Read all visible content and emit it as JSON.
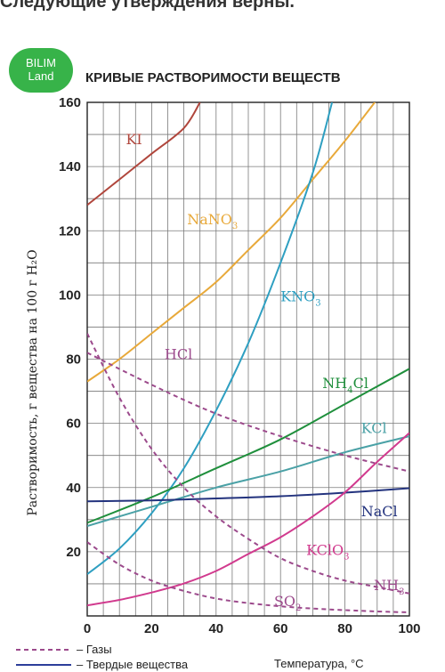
{
  "page": {
    "heading_fragment": "Следующие утверждения верны.",
    "logo_line1": "BILIM",
    "logo_line2": "Land"
  },
  "colors": {
    "grid": "#7a7a7a",
    "axis": "#222222",
    "logo_bg": "#37b349"
  },
  "chart_data": {
    "type": "line",
    "title": "КРИВЫЕ РАСТВОРИМОСТИ ВЕЩЕСТВ",
    "xlabel": "Температура, °С",
    "ylabel": "Растворимость, г вещества на 100 г H₂O",
    "xlim": [
      0,
      100
    ],
    "ylim": [
      0,
      160
    ],
    "x_ticks": [
      0,
      20,
      40,
      60,
      80,
      100
    ],
    "y_ticks": [
      20,
      40,
      60,
      80,
      100,
      120,
      140,
      160
    ],
    "grid": true,
    "legend": [
      {
        "label": "Газы",
        "style": "dashed",
        "color": "#9c4a8c"
      },
      {
        "label": "Твердые вещества",
        "style": "solid",
        "color": "#2c3e9a"
      }
    ],
    "series": [
      {
        "name": "KI",
        "color": "#b0463c",
        "style": "solid",
        "label_at": [
          12,
          147
        ],
        "points": [
          [
            0,
            128
          ],
          [
            10,
            136
          ],
          [
            20,
            144
          ],
          [
            30,
            152
          ],
          [
            35,
            160
          ]
        ]
      },
      {
        "name": "NaNO3",
        "color": "#e8a93a",
        "style": "solid",
        "label_at": [
          31,
          122
        ],
        "points": [
          [
            0,
            73
          ],
          [
            10,
            80
          ],
          [
            20,
            88
          ],
          [
            30,
            96
          ],
          [
            40,
            104
          ],
          [
            50,
            114
          ],
          [
            60,
            124
          ],
          [
            70,
            136
          ],
          [
            80,
            148
          ],
          [
            90,
            161
          ]
        ]
      },
      {
        "name": "KNO3",
        "color": "#2e9fc1",
        "style": "solid",
        "label_at": [
          60,
          98
        ],
        "points": [
          [
            0,
            13
          ],
          [
            10,
            21
          ],
          [
            20,
            32
          ],
          [
            30,
            46
          ],
          [
            40,
            64
          ],
          [
            50,
            85
          ],
          [
            60,
            110
          ],
          [
            70,
            138
          ],
          [
            76,
            160
          ]
        ]
      },
      {
        "name": "NH4Cl",
        "color": "#1f8f3c",
        "style": "solid",
        "label_at": [
          73,
          71
        ],
        "points": [
          [
            0,
            29
          ],
          [
            20,
            37
          ],
          [
            40,
            46
          ],
          [
            60,
            55
          ],
          [
            80,
            66
          ],
          [
            100,
            77
          ]
        ]
      },
      {
        "name": "KCl",
        "color": "#4aa1a6",
        "style": "solid",
        "label_at": [
          85,
          57
        ],
        "points": [
          [
            0,
            28
          ],
          [
            20,
            34
          ],
          [
            40,
            40
          ],
          [
            60,
            45
          ],
          [
            80,
            51
          ],
          [
            100,
            56
          ]
        ]
      },
      {
        "name": "NaCl",
        "color": "#23337e",
        "style": "solid",
        "label_at": [
          85,
          31
        ],
        "points": [
          [
            0,
            35.7
          ],
          [
            20,
            36
          ],
          [
            40,
            36.6
          ],
          [
            60,
            37.3
          ],
          [
            80,
            38.4
          ],
          [
            100,
            39.8
          ]
        ]
      },
      {
        "name": "KClO3",
        "color": "#d13a8e",
        "style": "solid",
        "label_at": [
          68,
          19
        ],
        "points": [
          [
            0,
            3.3
          ],
          [
            10,
            5
          ],
          [
            20,
            7.3
          ],
          [
            30,
            10.1
          ],
          [
            40,
            14
          ],
          [
            50,
            19.3
          ],
          [
            60,
            24.5
          ],
          [
            70,
            31
          ],
          [
            80,
            38.5
          ],
          [
            90,
            48
          ],
          [
            100,
            57
          ]
        ]
      },
      {
        "name": "HCl",
        "color": "#9c4a8c",
        "style": "dashed",
        "label_at": [
          24,
          80
        ],
        "points": [
          [
            0,
            82
          ],
          [
            20,
            72
          ],
          [
            40,
            63
          ],
          [
            60,
            56
          ],
          [
            80,
            50
          ],
          [
            100,
            45
          ]
        ]
      },
      {
        "name": "NH3",
        "color": "#9c4a8c",
        "style": "dashed",
        "label_at": [
          89,
          8
        ],
        "points": [
          [
            0,
            88
          ],
          [
            10,
            68
          ],
          [
            20,
            52
          ],
          [
            30,
            40
          ],
          [
            40,
            31
          ],
          [
            50,
            24
          ],
          [
            60,
            18
          ],
          [
            70,
            14
          ],
          [
            80,
            11
          ],
          [
            90,
            9
          ],
          [
            100,
            7
          ]
        ]
      },
      {
        "name": "SO2",
        "color": "#9c4a8c",
        "style": "dashed",
        "label_at": [
          58,
          3
        ],
        "points": [
          [
            0,
            23
          ],
          [
            10,
            16
          ],
          [
            20,
            11
          ],
          [
            30,
            7.8
          ],
          [
            40,
            5.4
          ],
          [
            50,
            4
          ],
          [
            60,
            3
          ],
          [
            70,
            2.3
          ],
          [
            80,
            1.8
          ],
          [
            90,
            1.4
          ],
          [
            100,
            1.1
          ]
        ]
      }
    ]
  }
}
